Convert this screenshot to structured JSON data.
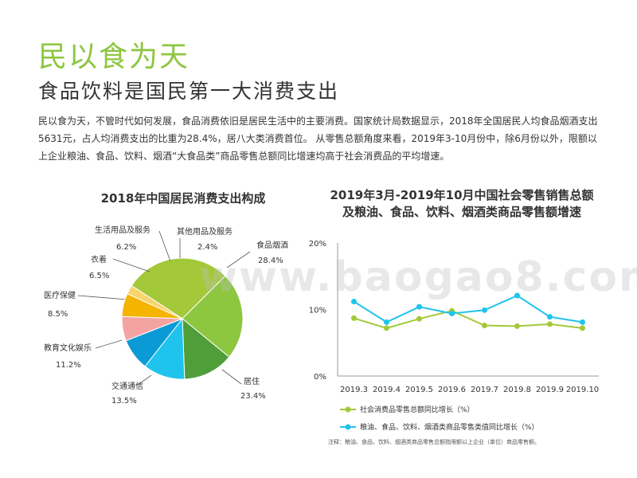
{
  "header": {
    "title": "民以食为天",
    "subtitle": "食品饮料是国民第一大消费支出"
  },
  "paragraph": "民以食为天，不管时代如何发展，食品消费依旧是居民生活中的主要消费。国家统计局数据显示，2018年全国居民人均食品烟酒支出5631元，占人均消费支出的比重为28.4%，居八大类消费首位。 从零售总额角度来看，2019年3-10月份中，除6月份以外，限额以上企业粮油、食品、饮料、烟酒“大食品类”商品零售总额同比增速均高于社会消费品的平均增速。",
  "watermark": "www.baogao8.com",
  "note": "注释：粮油、食品、饮料、烟酒类商品零售总额指限额以上企业（单位）商品零售额。",
  "chart_data": [
    {
      "type": "pie",
      "title": "2018年中国居民消费支出构成",
      "slices": [
        {
          "name": "食品烟酒",
          "value": 28.4,
          "label": "28.4%",
          "color": "#a3c93a"
        },
        {
          "name": "居住",
          "value": 23.4,
          "label": "23.4%",
          "color": "#8dc63f"
        },
        {
          "name": "交通通信",
          "value": 13.5,
          "label": "13.5%",
          "color": "#4f9e3a"
        },
        {
          "name": "教育文化娱乐",
          "value": 11.2,
          "label": "11.2%",
          "color": "#1fc4ec"
        },
        {
          "name": "医疗保健",
          "value": 8.5,
          "label": "8.5%",
          "color": "#0a9ad6"
        },
        {
          "name": "衣着",
          "value": 6.5,
          "label": "6.5%",
          "color": "#f4a3a3"
        },
        {
          "name": "生活用品及服务",
          "value": 6.2,
          "label": "6.2%",
          "color": "#f5b400"
        },
        {
          "name": "其他用品及服务",
          "value": 2.4,
          "label": "2.4%",
          "color": "#f9d36b"
        }
      ]
    },
    {
      "type": "line",
      "title_line1": "2019年3月-2019年10月中国社会零售销售总额",
      "title_line2": "及粮油、食品、饮料、烟酒类商品零售额增速",
      "categories": [
        "2019.3",
        "2019.4",
        "2019.5",
        "2019.6",
        "2019.7",
        "2019.8",
        "2019.9",
        "2019.10"
      ],
      "yticks": [
        "0%",
        "10%",
        "20%"
      ],
      "ylim": [
        0,
        20
      ],
      "series": [
        {
          "name": "社会消费品零售总额同比增长（%）",
          "color": "#a3c93a",
          "values": [
            8.7,
            7.2,
            8.6,
            9.8,
            7.6,
            7.5,
            7.8,
            7.2
          ]
        },
        {
          "name": "粮油、食品、饮料、烟酒类商品零售类值同比增长（%）",
          "color": "#1fc4ec",
          "values": [
            11.2,
            8.1,
            10.4,
            9.4,
            9.9,
            12.1,
            8.9,
            8.1
          ]
        }
      ]
    }
  ]
}
